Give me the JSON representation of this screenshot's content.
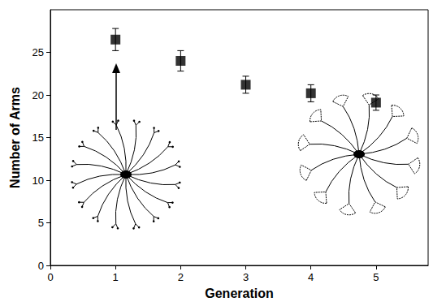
{
  "chart_data": {
    "type": "scatter",
    "x_label": "Generation",
    "y_label": "Number of Arms",
    "x": [
      1,
      2,
      3,
      4,
      5
    ],
    "values": [
      26.5,
      24.0,
      21.2,
      20.2,
      19.1
    ],
    "errors": [
      1.3,
      1.2,
      1.0,
      1.0,
      0.9
    ],
    "xlim": [
      0,
      5.8
    ],
    "ylim": [
      0,
      30
    ],
    "xticks": [
      0,
      1,
      2,
      3,
      4,
      5
    ],
    "yticks": [
      0,
      5,
      10,
      15,
      20,
      25
    ],
    "marker": "square",
    "color": "#000000",
    "grid": false
  }
}
